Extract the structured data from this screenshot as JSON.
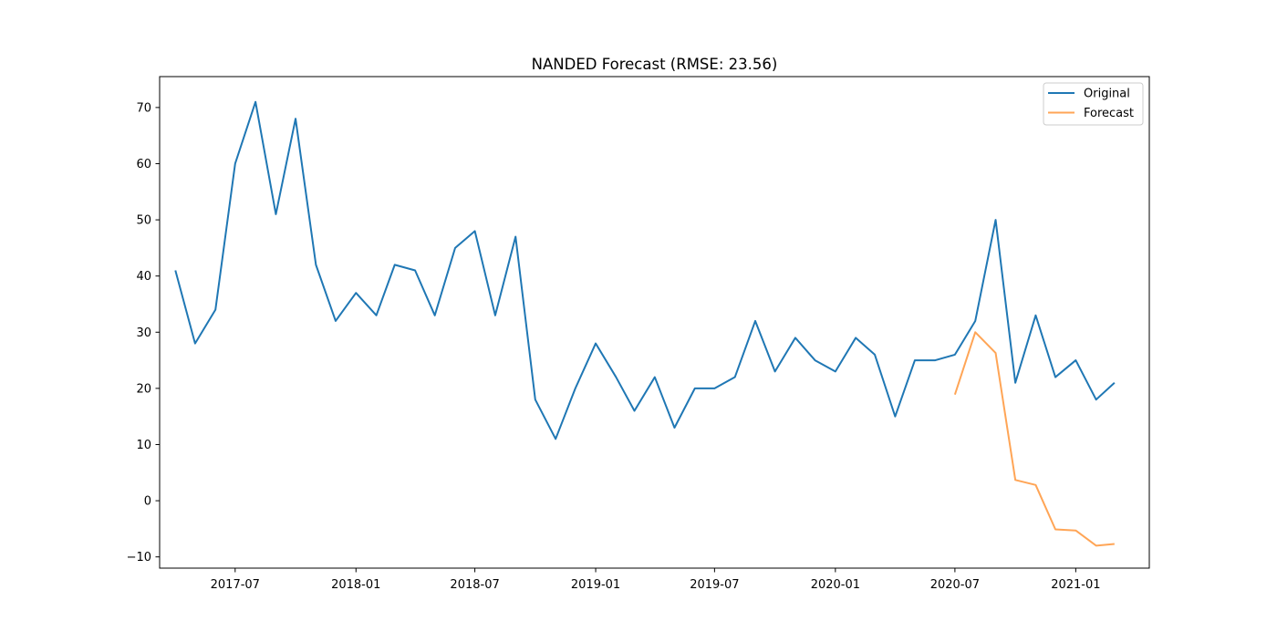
{
  "chart_data": {
    "type": "line",
    "title": "NANDED Forecast (RMSE: 23.56)",
    "xlabel": "",
    "ylabel": "",
    "x_axis_type": "date",
    "xlim": [
      "2017-03-08",
      "2021-04-23"
    ],
    "ylim": [
      -12,
      75.5
    ],
    "yticks": [
      -10,
      0,
      10,
      20,
      30,
      40,
      50,
      60,
      70
    ],
    "xticks": [
      "2017-07-01",
      "2018-01-01",
      "2018-07-01",
      "2019-01-01",
      "2019-07-01",
      "2020-01-01",
      "2020-07-01",
      "2021-01-01"
    ],
    "xtick_labels": [
      "2017-07",
      "2018-01",
      "2018-07",
      "2019-01",
      "2019-07",
      "2020-01",
      "2020-07",
      "2021-01"
    ],
    "grid": false,
    "legend_position": "top-right",
    "series": [
      {
        "name": "Original",
        "color": "#1f77b4",
        "x": [
          "2017-04-01",
          "2017-05-01",
          "2017-06-01",
          "2017-07-01",
          "2017-08-01",
          "2017-09-01",
          "2017-10-01",
          "2017-11-01",
          "2017-12-01",
          "2018-01-01",
          "2018-02-01",
          "2018-03-01",
          "2018-04-01",
          "2018-05-01",
          "2018-06-01",
          "2018-07-01",
          "2018-08-01",
          "2018-09-01",
          "2018-10-01",
          "2018-11-01",
          "2018-12-01",
          "2019-01-01",
          "2019-02-01",
          "2019-03-01",
          "2019-04-01",
          "2019-05-01",
          "2019-06-01",
          "2019-07-01",
          "2019-08-01",
          "2019-09-01",
          "2019-10-01",
          "2019-11-01",
          "2019-12-01",
          "2020-01-01",
          "2020-02-01",
          "2020-03-01",
          "2020-04-01",
          "2020-05-01",
          "2020-06-01",
          "2020-07-01",
          "2020-08-01",
          "2020-09-01",
          "2020-10-01",
          "2020-11-01",
          "2020-12-01",
          "2021-01-01",
          "2021-02-01",
          "2021-03-01"
        ],
        "values": [
          41,
          28,
          34,
          60,
          71,
          51,
          68,
          42,
          32,
          37,
          33,
          42,
          41,
          33,
          45,
          48,
          33,
          47,
          18,
          11,
          20,
          28,
          22,
          16,
          22,
          13,
          20,
          20,
          22,
          32,
          23,
          29,
          25,
          23,
          29,
          26,
          15,
          25,
          25,
          26,
          32,
          50,
          21,
          33,
          22,
          25,
          18,
          21
        ]
      },
      {
        "name": "Forecast",
        "color": "#ff7f0e",
        "opacity": 0.7,
        "x": [
          "2020-07-01",
          "2020-08-01",
          "2020-09-01",
          "2020-10-01",
          "2020-11-01",
          "2020-12-01",
          "2021-01-01",
          "2021-02-01",
          "2021-03-01"
        ],
        "values": [
          18.9,
          30,
          26.3,
          3.7,
          2.8,
          -5.1,
          -5.3,
          -8,
          -7.7
        ]
      }
    ]
  }
}
